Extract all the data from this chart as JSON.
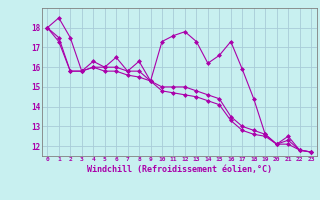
{
  "xlabel": "Windchill (Refroidissement éolien,°C)",
  "background_color": "#c8f0f0",
  "grid_color": "#a8ccd8",
  "line_color": "#aa00aa",
  "hours": [
    0,
    1,
    2,
    3,
    4,
    5,
    6,
    7,
    8,
    9,
    10,
    11,
    12,
    13,
    14,
    15,
    16,
    17,
    18,
    19,
    20,
    21,
    22,
    23
  ],
  "series1": [
    18.0,
    18.5,
    17.5,
    15.8,
    16.3,
    16.0,
    16.5,
    15.8,
    16.3,
    15.3,
    17.3,
    17.6,
    17.8,
    17.3,
    16.2,
    16.6,
    17.3,
    15.9,
    14.4,
    12.6,
    12.1,
    12.5,
    11.8,
    11.7
  ],
  "series2": [
    18.0,
    17.5,
    15.8,
    15.8,
    16.0,
    16.0,
    16.0,
    15.8,
    15.8,
    15.3,
    15.0,
    15.0,
    15.0,
    14.8,
    14.6,
    14.4,
    13.5,
    13.0,
    12.8,
    12.6,
    12.1,
    12.3,
    11.8,
    11.7
  ],
  "series3": [
    18.0,
    17.3,
    15.8,
    15.8,
    16.0,
    15.8,
    15.8,
    15.6,
    15.5,
    15.3,
    14.8,
    14.7,
    14.6,
    14.5,
    14.3,
    14.1,
    13.3,
    12.8,
    12.6,
    12.5,
    12.1,
    12.1,
    11.8,
    11.7
  ],
  "ylim": [
    11.5,
    19.0
  ],
  "yticks": [
    12,
    13,
    14,
    15,
    16,
    17,
    18
  ],
  "xlim": [
    -0.5,
    23.5
  ]
}
